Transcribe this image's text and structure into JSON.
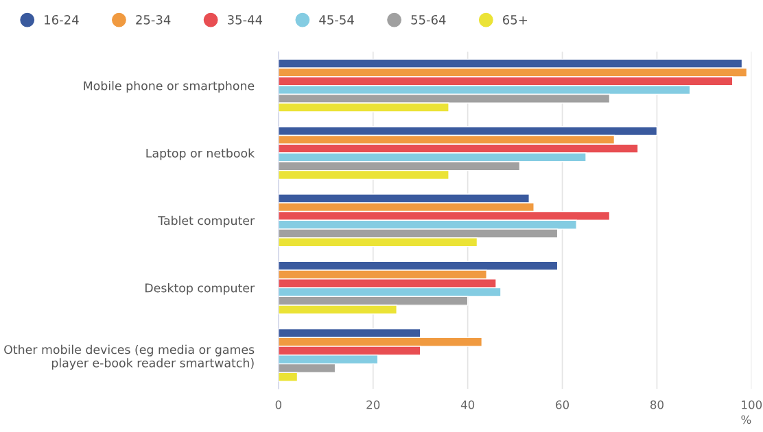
{
  "chart_data": {
    "type": "bar",
    "orientation": "horizontal",
    "categories": [
      "Mobile phone or smartphone",
      "Laptop or netbook",
      "Tablet computer",
      "Desktop computer",
      "Other mobile devices (eg media or games\nplayer e-book reader smartwatch)"
    ],
    "series": [
      {
        "name": "16-24",
        "color": "#3a5a9e",
        "values": [
          98,
          80,
          53,
          59,
          30
        ]
      },
      {
        "name": "25-34",
        "color": "#f09a40",
        "values": [
          99,
          71,
          54,
          44,
          43
        ]
      },
      {
        "name": "35-44",
        "color": "#e84e52",
        "values": [
          96,
          76,
          70,
          46,
          30
        ]
      },
      {
        "name": "45-54",
        "color": "#84cce2",
        "values": [
          87,
          65,
          63,
          47,
          21
        ]
      },
      {
        "name": "55-64",
        "color": "#a0a0a0",
        "values": [
          70,
          51,
          59,
          40,
          12
        ]
      },
      {
        "name": "65+",
        "color": "#ebe336",
        "values": [
          36,
          36,
          42,
          25,
          4
        ]
      }
    ],
    "xlim": [
      0,
      100
    ],
    "xticks": [
      0,
      20,
      40,
      60,
      80,
      100
    ],
    "xlabel": "%",
    "grid": "x",
    "legend": "top left"
  }
}
